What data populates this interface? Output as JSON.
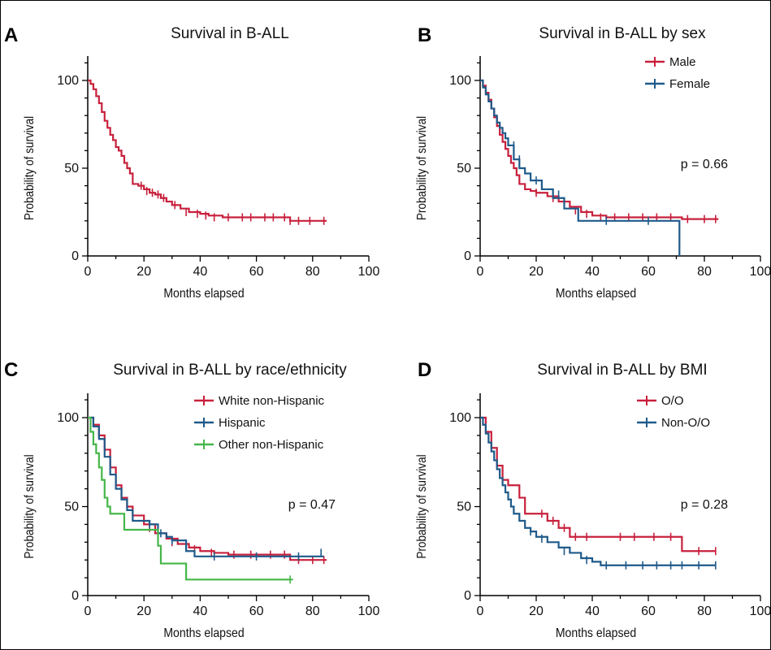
{
  "colors": {
    "red": "#c8203c",
    "blue": "#1f5a8a",
    "green": "#45b649",
    "axis": "#000000"
  },
  "chart_data": [
    {
      "type": "line",
      "panel_letter": "A",
      "title": "Survival in B-ALL",
      "xlabel": "Months elapsed",
      "ylabel": "Probability of survival",
      "xlim": [
        0,
        100
      ],
      "ylim": [
        0,
        100
      ],
      "xticks": [
        "0",
        "20",
        "40",
        "60",
        "80",
        "100"
      ],
      "yticks": [
        "0",
        "50",
        "100"
      ],
      "grid": false,
      "legend_position": "",
      "p_value": "",
      "series": [
        {
          "name": "",
          "color": "#c8203c",
          "x": [
            0,
            1,
            2,
            3,
            4,
            5,
            6,
            7,
            8,
            9,
            10,
            11,
            12,
            13,
            14,
            15,
            16,
            18,
            20,
            22,
            24,
            26,
            28,
            30,
            33,
            36,
            40,
            43,
            48,
            55,
            60,
            65,
            70,
            72,
            85
          ],
          "y": [
            100,
            98,
            95,
            91,
            87,
            82,
            77,
            73,
            69,
            66,
            62,
            60,
            57,
            53,
            50,
            47,
            41,
            40,
            38,
            36,
            35,
            33,
            31,
            29,
            27,
            25,
            24,
            23,
            22,
            22,
            22,
            22,
            22,
            20,
            20
          ],
          "censor_x": [
            19,
            21,
            23,
            25,
            27,
            31,
            35,
            39,
            42,
            45,
            50,
            55,
            58,
            63,
            66,
            70,
            72,
            75,
            79,
            84
          ],
          "censor_y": [
            40,
            37,
            36,
            35,
            33,
            29,
            25,
            24,
            23,
            22,
            22,
            22,
            22,
            22,
            22,
            22,
            20,
            20,
            20,
            20
          ]
        }
      ]
    },
    {
      "type": "line",
      "panel_letter": "B",
      "title": "Survival in B-ALL by sex",
      "xlabel": "Months elapsed",
      "ylabel": "Probability of survival",
      "xlim": [
        0,
        100
      ],
      "ylim": [
        0,
        100
      ],
      "xticks": [
        "0",
        "20",
        "40",
        "60",
        "80",
        "100"
      ],
      "yticks": [
        "0",
        "50",
        "100"
      ],
      "grid": false,
      "legend_position": "top-right",
      "p_value": "p = 0.66",
      "series": [
        {
          "name": "Male",
          "color": "#c8203c",
          "x": [
            0,
            1,
            2,
            3,
            4,
            5,
            6,
            7,
            8,
            9,
            10,
            11,
            12,
            13,
            14,
            16,
            18,
            20,
            24,
            28,
            32,
            36,
            40,
            45,
            55,
            65,
            72,
            85
          ],
          "y": [
            100,
            97,
            93,
            89,
            84,
            79,
            74,
            69,
            65,
            61,
            57,
            53,
            50,
            46,
            41,
            38,
            37,
            36,
            34,
            31,
            28,
            25,
            23,
            22,
            22,
            22,
            21,
            21
          ],
          "censor_x": [
            20,
            26,
            30,
            34,
            38,
            43,
            48,
            53,
            58,
            63,
            68,
            74,
            80,
            84
          ],
          "censor_y": [
            36,
            33,
            29,
            26,
            24,
            22,
            22,
            22,
            22,
            22,
            22,
            21,
            21,
            21
          ]
        },
        {
          "name": "Female",
          "color": "#1f5a8a",
          "x": [
            0,
            1,
            2,
            3,
            4,
            5,
            6,
            7,
            8,
            9,
            10,
            12,
            14,
            16,
            18,
            22,
            26,
            30,
            35,
            71,
            71.1
          ],
          "y": [
            100,
            96,
            92,
            88,
            84,
            80,
            76,
            73,
            70,
            67,
            63,
            55,
            50,
            47,
            43,
            38,
            33,
            27,
            20,
            20,
            0
          ],
          "censor_x": [
            12,
            14,
            20,
            26,
            28,
            45,
            60
          ],
          "censor_y": [
            63,
            55,
            43,
            35,
            35,
            20,
            20
          ]
        }
      ]
    },
    {
      "type": "line",
      "panel_letter": "C",
      "title": "Survival in B-ALL by race/ethnicity",
      "xlabel": "Months elapsed",
      "ylabel": "Probability of survival",
      "xlim": [
        0,
        100
      ],
      "ylim": [
        0,
        100
      ],
      "xticks": [
        "0",
        "20",
        "40",
        "60",
        "80",
        "100"
      ],
      "yticks": [
        "0",
        "50",
        "100"
      ],
      "grid": false,
      "legend_position": "top-right",
      "p_value": "p = 0.47",
      "series": [
        {
          "name": "White non-Hispanic",
          "color": "#c8203c",
          "x": [
            0,
            2,
            4,
            6,
            8,
            10,
            12,
            14,
            16,
            20,
            24,
            28,
            32,
            36,
            40,
            45,
            50,
            60,
            70,
            72,
            85
          ],
          "y": [
            100,
            96,
            90,
            82,
            72,
            62,
            55,
            50,
            45,
            40,
            35,
            32,
            29,
            27,
            25,
            24,
            23,
            23,
            23,
            20,
            20
          ],
          "censor_x": [
            22,
            30,
            38,
            44,
            52,
            58,
            65,
            70,
            75,
            80,
            84
          ],
          "censor_y": [
            38,
            30,
            26,
            24,
            23,
            23,
            23,
            23,
            20,
            20,
            20
          ]
        },
        {
          "name": "Hispanic",
          "color": "#1f5a8a",
          "x": [
            0,
            2,
            4,
            6,
            8,
            10,
            12,
            14,
            16,
            19,
            22,
            25,
            28,
            30,
            35,
            38,
            84
          ],
          "y": [
            100,
            95,
            88,
            78,
            68,
            60,
            54,
            48,
            42,
            42,
            40,
            35,
            33,
            31,
            25,
            22,
            22
          ],
          "censor_x": [
            22,
            26,
            30,
            45,
            60,
            75,
            83
          ],
          "censor_y": [
            40,
            35,
            31,
            22,
            22,
            22,
            24
          ]
        },
        {
          "name": "Other non-Hispanic",
          "color": "#45b649",
          "x": [
            0,
            1,
            2,
            3,
            4,
            5,
            6,
            7,
            8,
            12,
            13,
            18,
            25,
            26,
            30,
            35,
            73
          ],
          "y": [
            100,
            92,
            85,
            80,
            72,
            65,
            55,
            50,
            46,
            46,
            37,
            37,
            28,
            18,
            18,
            9,
            9
          ],
          "censor_x": [
            72
          ],
          "censor_y": [
            9
          ]
        }
      ]
    },
    {
      "type": "line",
      "panel_letter": "D",
      "title": "Survival in B-ALL by BMI",
      "xlabel": "Months elapsed",
      "ylabel": "Probability of survival",
      "xlim": [
        0,
        100
      ],
      "ylim": [
        0,
        100
      ],
      "xticks": [
        "0",
        "20",
        "40",
        "60",
        "80",
        "100"
      ],
      "yticks": [
        "0",
        "50",
        "100"
      ],
      "grid": false,
      "legend_position": "top-right",
      "p_value": "p = 0.28",
      "series": [
        {
          "name": "O/O",
          "color": "#c8203c",
          "x": [
            0,
            2,
            4,
            6,
            8,
            10,
            12,
            14,
            16,
            20,
            24,
            28,
            32,
            40,
            50,
            60,
            70,
            72,
            84
          ],
          "y": [
            100,
            92,
            83,
            73,
            65,
            62,
            62,
            55,
            46,
            46,
            42,
            38,
            33,
            33,
            33,
            33,
            33,
            25,
            25
          ],
          "censor_x": [
            22,
            26,
            30,
            34,
            38,
            50,
            55,
            62,
            68,
            78,
            84
          ],
          "censor_y": [
            46,
            42,
            38,
            33,
            33,
            33,
            33,
            33,
            33,
            25,
            25
          ]
        },
        {
          "name": "Non-O/O",
          "color": "#1f5a8a",
          "x": [
            0,
            1,
            2,
            3,
            4,
            5,
            6,
            7,
            8,
            9,
            10,
            11,
            12,
            14,
            16,
            18,
            20,
            24,
            28,
            32,
            36,
            40,
            43,
            50,
            84
          ],
          "y": [
            100,
            96,
            91,
            86,
            81,
            76,
            71,
            66,
            62,
            58,
            54,
            50,
            46,
            42,
            38,
            36,
            33,
            30,
            27,
            24,
            21,
            19,
            17,
            17,
            17
          ],
          "censor_x": [
            18,
            22,
            30,
            38,
            45,
            52,
            58,
            63,
            68,
            72,
            78,
            84
          ],
          "censor_y": [
            36,
            32,
            25,
            20,
            17,
            17,
            17,
            17,
            17,
            17,
            17,
            17
          ]
        }
      ]
    }
  ]
}
